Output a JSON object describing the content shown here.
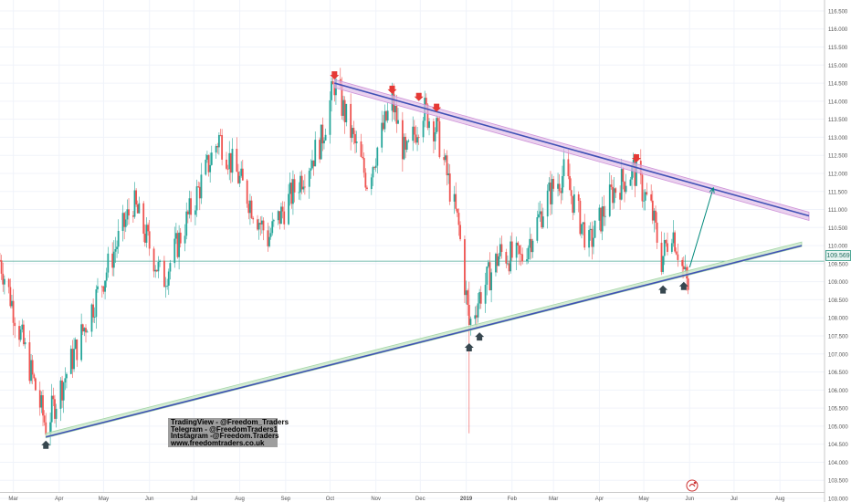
{
  "chart_data": {
    "type": "candlestick",
    "title": "",
    "xlabel": "",
    "ylabel": "",
    "ylim": [
      103.0,
      116.6
    ],
    "y_ticks": [
      "116.500",
      "116.000",
      "115.500",
      "115.000",
      "114.500",
      "114.000",
      "113.500",
      "113.000",
      "112.500",
      "112.000",
      "111.500",
      "111.000",
      "110.500",
      "110.000",
      "109.500",
      "109.000",
      "108.500",
      "108.000",
      "107.500",
      "107.000",
      "106.500",
      "106.000",
      "105.500",
      "105.000",
      "104.500",
      "104.000",
      "103.500",
      "103.000"
    ],
    "x_ticks": [
      "Mar",
      "Apr",
      "May",
      "Jun",
      "Jul",
      "Aug",
      "Sep",
      "Oct",
      "Nov",
      "Dec",
      "2019",
      "Feb",
      "Mar",
      "Apr",
      "May",
      "Jun",
      "Jul",
      "Aug"
    ],
    "current_price": "109.569",
    "grid": true,
    "up_color": "#26a69a",
    "down_color": "#ef5350",
    "anchors": [
      {
        "x": "2018-02-20",
        "y": 109.6
      },
      {
        "x": "2018-03-23",
        "y": 105.0
      },
      {
        "x": "2018-05-21",
        "y": 111.2
      },
      {
        "x": "2018-06-10",
        "y": 109.0
      },
      {
        "x": "2018-07-18",
        "y": 113.0
      },
      {
        "x": "2018-08-20",
        "y": 110.2
      },
      {
        "x": "2018-09-25",
        "y": 112.9
      },
      {
        "x": "2018-10-04",
        "y": 114.5
      },
      {
        "x": "2018-10-26",
        "y": 111.8
      },
      {
        "x": "2018-11-12",
        "y": 114.0
      },
      {
        "x": "2018-11-21",
        "y": 112.4
      },
      {
        "x": "2018-12-03",
        "y": 113.8
      },
      {
        "x": "2018-12-12",
        "y": 113.2
      },
      {
        "x": "2018-12-27",
        "y": 110.5
      },
      {
        "x": "2019-01-03",
        "y": 107.8
      },
      {
        "x": "2019-01-10",
        "y": 108.6
      },
      {
        "x": "2019-01-24",
        "y": 109.8
      },
      {
        "x": "2019-02-07",
        "y": 109.6
      },
      {
        "x": "2019-02-27",
        "y": 111.5
      },
      {
        "x": "2019-03-08",
        "y": 112.0
      },
      {
        "x": "2019-03-25",
        "y": 110.0
      },
      {
        "x": "2019-04-10",
        "y": 111.5
      },
      {
        "x": "2019-04-24",
        "y": 112.1
      },
      {
        "x": "2019-05-06",
        "y": 111.0
      },
      {
        "x": "2019-05-13",
        "y": 109.6
      },
      {
        "x": "2019-05-20",
        "y": 110.5
      },
      {
        "x": "2019-05-31",
        "y": 108.8
      }
    ],
    "resistance_line": {
      "from": {
        "x": "2018-10-04",
        "y": 114.5
      },
      "to": {
        "x": "2019-08-12",
        "y": 110.9
      }
    },
    "support_line": {
      "from": {
        "x": "2018-03-23",
        "y": 104.7
      },
      "to": {
        "x": "2019-08-12",
        "y": 110.0
      }
    },
    "down_markers": [
      {
        "x": "2018-10-04",
        "y": 114.5
      },
      {
        "x": "2018-11-12",
        "y": 114.1
      },
      {
        "x": "2018-11-30",
        "y": 113.9
      },
      {
        "x": "2018-12-12",
        "y": 113.6
      },
      {
        "x": "2019-04-26",
        "y": 112.2
      }
    ],
    "up_markers": [
      {
        "x": "2018-03-23",
        "y": 104.7
      },
      {
        "x": "2019-01-03",
        "y": 107.4
      },
      {
        "x": "2019-01-10",
        "y": 107.7
      },
      {
        "x": "2019-05-14",
        "y": 109.0
      },
      {
        "x": "2019-05-28",
        "y": 109.1
      }
    ],
    "projection_arrow": {
      "from": {
        "x": "2019-06-01",
        "y": 109.4
      },
      "to": {
        "x": "2019-06-17",
        "y": 111.6
      }
    },
    "outlier_wick": {
      "x": "2019-01-03",
      "y_high": 109.0,
      "y_low": 104.8
    }
  },
  "social": {
    "line1": "TradingView - @Freedom_Traders",
    "line2": "Telegram - @FreedomTraders1",
    "line3": "Intstagram -@Freedom.Traders",
    "line4": "www.freedomtraders.co.uk"
  }
}
